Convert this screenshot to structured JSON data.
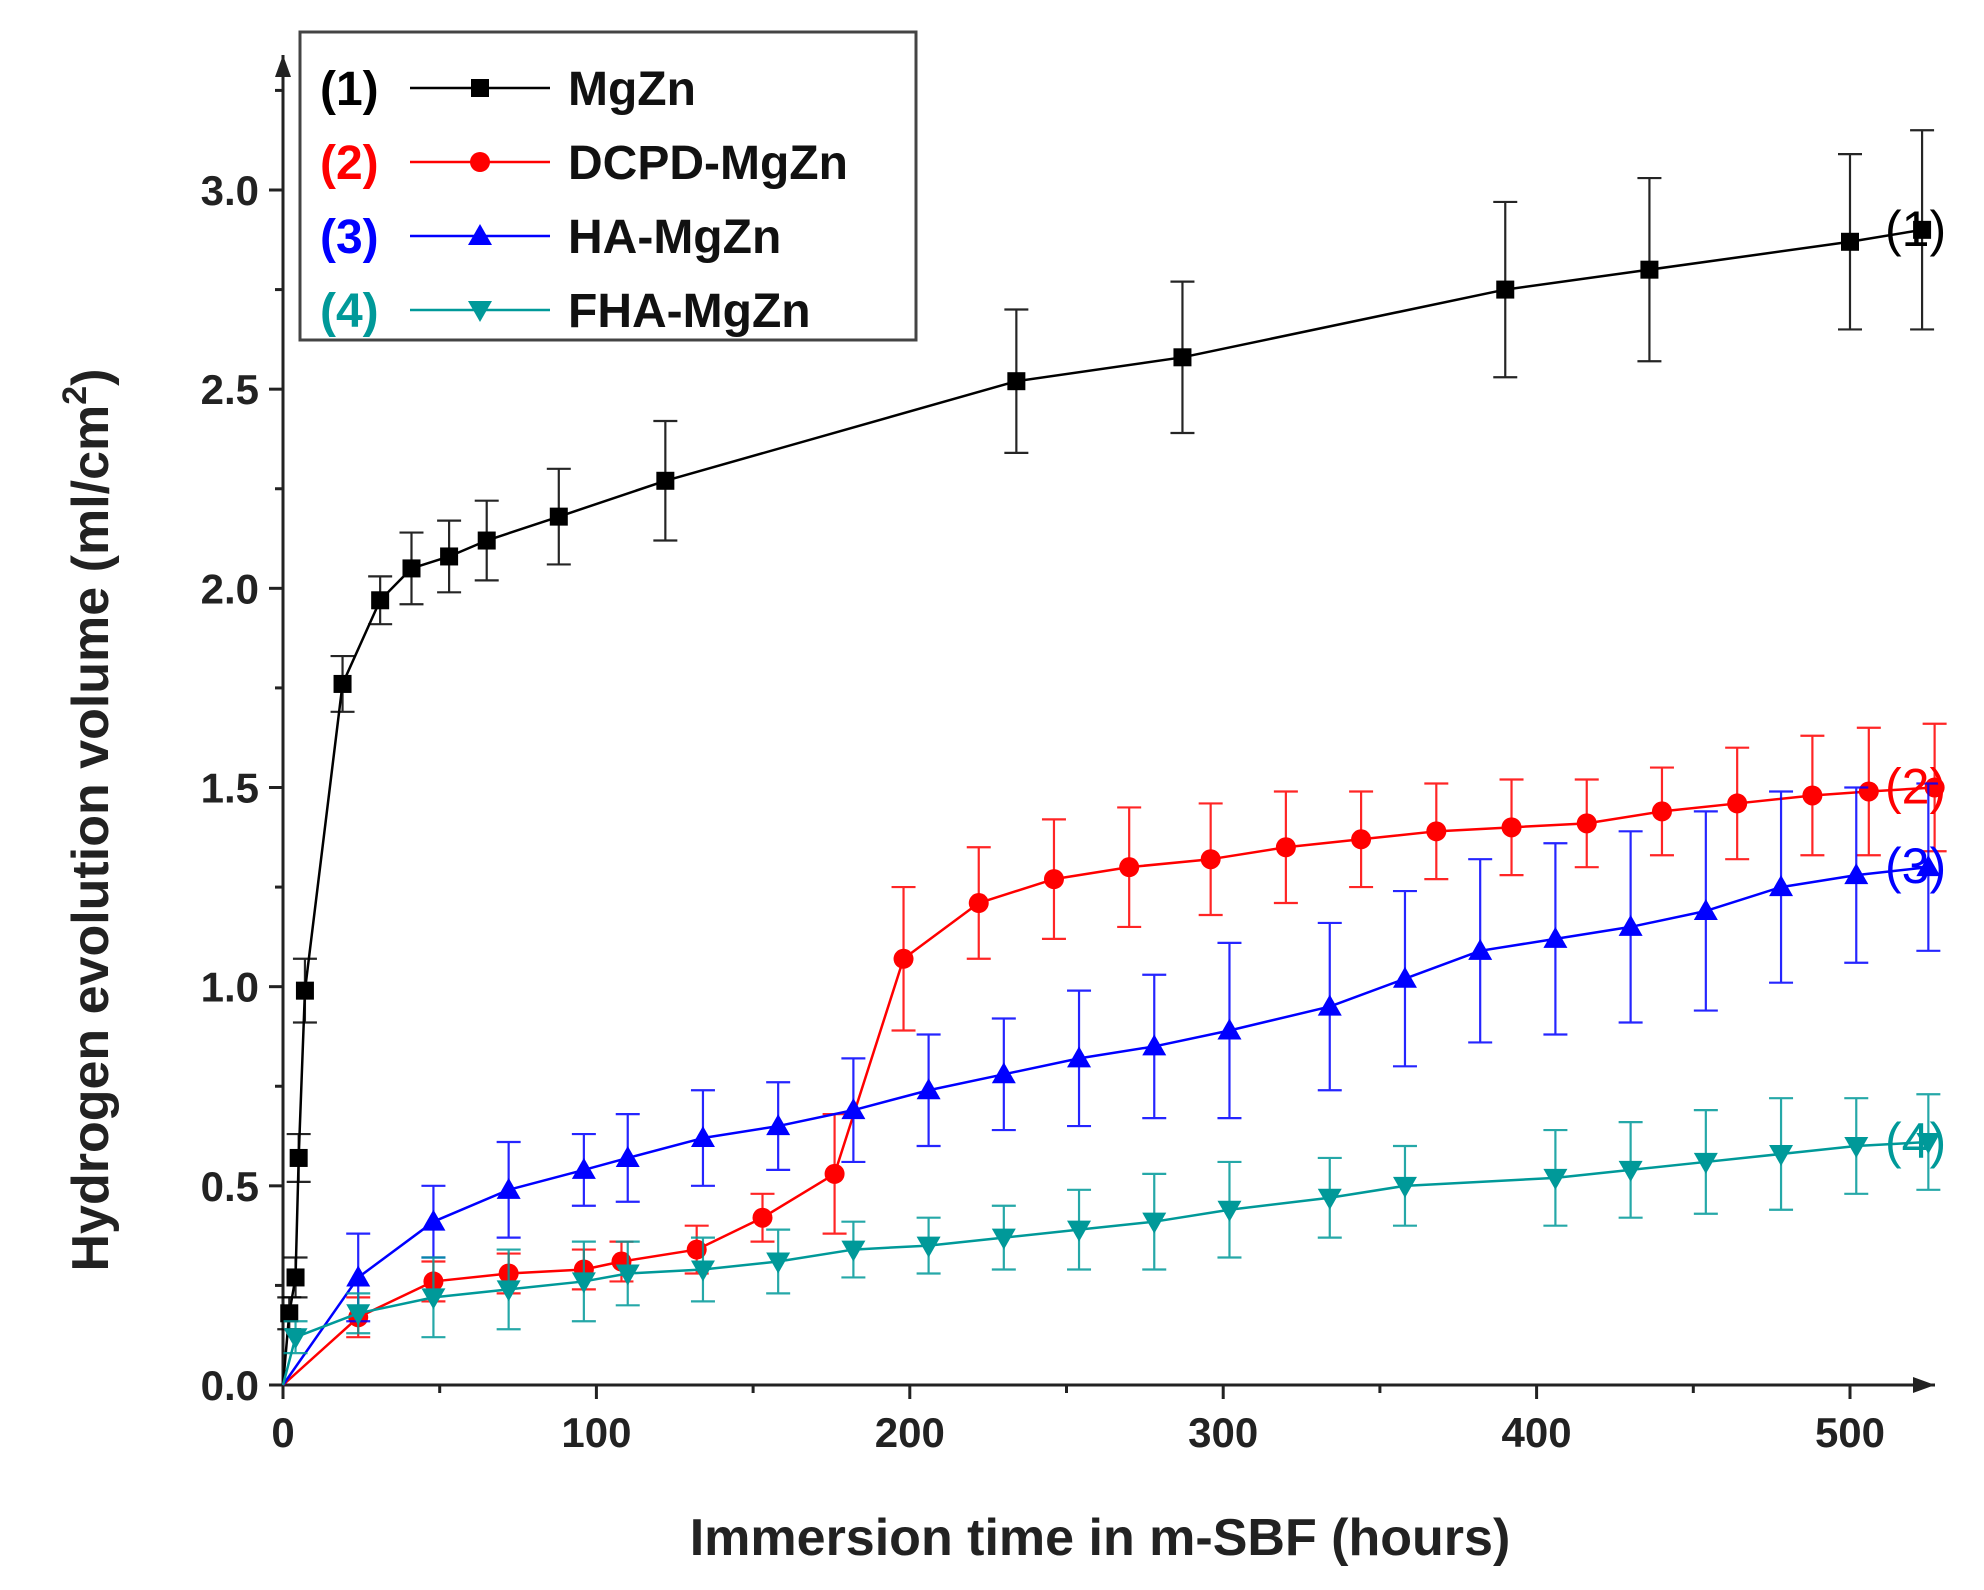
{
  "chart_data": {
    "type": "line",
    "title": "",
    "xlabel": "Immersion time in m-SBF (hours)",
    "ylabel": "Hydrogen evolution volume (ml/cm",
    "ylabel_sup": "2",
    "ylabel_close": ")",
    "xlim": [
      0,
      550
    ],
    "ylim": [
      0,
      3.2
    ],
    "x_ticks": [
      0,
      100,
      200,
      300,
      400,
      500
    ],
    "x_tick_labels": [
      "0",
      "100",
      "200",
      "300",
      "400",
      "500"
    ],
    "y_ticks": [
      0.0,
      0.5,
      1.0,
      1.5,
      2.0,
      2.5,
      3.0
    ],
    "y_tick_labels": [
      "0.0",
      "0.5",
      "1.0",
      "1.5",
      "2.0",
      "2.5",
      "3.0"
    ],
    "legend_position": "top-left",
    "series": [
      {
        "id": "1",
        "tag": "(1)",
        "name": "MgZn",
        "color": "#000000",
        "marker": "square",
        "end_label": "(1)",
        "points": [
          {
            "x": 0,
            "y": 0.0,
            "err": 0
          },
          {
            "x": 2,
            "y": 0.18,
            "err": 0.04
          },
          {
            "x": 4,
            "y": 0.27,
            "err": 0.05
          },
          {
            "x": 5,
            "y": 0.57,
            "err": 0.06
          },
          {
            "x": 7,
            "y": 0.99,
            "err": 0.08
          },
          {
            "x": 19,
            "y": 1.76,
            "err": 0.07
          },
          {
            "x": 31,
            "y": 1.97,
            "err": 0.06
          },
          {
            "x": 41,
            "y": 2.05,
            "err": 0.09
          },
          {
            "x": 53,
            "y": 2.08,
            "err": 0.09
          },
          {
            "x": 65,
            "y": 2.12,
            "err": 0.1
          },
          {
            "x": 88,
            "y": 2.18,
            "err": 0.12
          },
          {
            "x": 122,
            "y": 2.27,
            "err": 0.15
          },
          {
            "x": 234,
            "y": 2.52,
            "err": 0.18
          },
          {
            "x": 287,
            "y": 2.58,
            "err": 0.19
          },
          {
            "x": 390,
            "y": 2.75,
            "err": 0.22
          },
          {
            "x": 436,
            "y": 2.8,
            "err": 0.23
          },
          {
            "x": 500,
            "y": 2.87,
            "err": 0.22
          },
          {
            "x": 523,
            "y": 2.9,
            "err": 0.25
          }
        ]
      },
      {
        "id": "2",
        "tag": "(2)",
        "name": "DCPD-MgZn",
        "color": "#ff0000",
        "marker": "circle",
        "end_label": "(2)",
        "points": [
          {
            "x": 0,
            "y": 0.0,
            "err": 0
          },
          {
            "x": 24,
            "y": 0.17,
            "err": 0.05
          },
          {
            "x": 48,
            "y": 0.26,
            "err": 0.05
          },
          {
            "x": 72,
            "y": 0.28,
            "err": 0.05
          },
          {
            "x": 96,
            "y": 0.29,
            "err": 0.05
          },
          {
            "x": 108,
            "y": 0.31,
            "err": 0.05
          },
          {
            "x": 132,
            "y": 0.34,
            "err": 0.06
          },
          {
            "x": 153,
            "y": 0.42,
            "err": 0.06
          },
          {
            "x": 176,
            "y": 0.53,
            "err": 0.15
          },
          {
            "x": 198,
            "y": 1.07,
            "err": 0.18
          },
          {
            "x": 222,
            "y": 1.21,
            "err": 0.14
          },
          {
            "x": 246,
            "y": 1.27,
            "err": 0.15
          },
          {
            "x": 270,
            "y": 1.3,
            "err": 0.15
          },
          {
            "x": 296,
            "y": 1.32,
            "err": 0.14
          },
          {
            "x": 320,
            "y": 1.35,
            "err": 0.14
          },
          {
            "x": 344,
            "y": 1.37,
            "err": 0.12
          },
          {
            "x": 368,
            "y": 1.39,
            "err": 0.12
          },
          {
            "x": 392,
            "y": 1.4,
            "err": 0.12
          },
          {
            "x": 416,
            "y": 1.41,
            "err": 0.11
          },
          {
            "x": 440,
            "y": 1.44,
            "err": 0.11
          },
          {
            "x": 464,
            "y": 1.46,
            "err": 0.14
          },
          {
            "x": 488,
            "y": 1.48,
            "err": 0.15
          },
          {
            "x": 506,
            "y": 1.49,
            "err": 0.16
          },
          {
            "x": 527,
            "y": 1.5,
            "err": 0.16
          }
        ]
      },
      {
        "id": "3",
        "tag": "(3)",
        "name": "HA-MgZn",
        "color": "#0000ff",
        "marker": "triangle-up",
        "end_label": "(3)",
        "points": [
          {
            "x": 0,
            "y": 0.0,
            "err": 0
          },
          {
            "x": 24,
            "y": 0.27,
            "err": 0.11
          },
          {
            "x": 48,
            "y": 0.41,
            "err": 0.09
          },
          {
            "x": 72,
            "y": 0.49,
            "err": 0.12
          },
          {
            "x": 96,
            "y": 0.54,
            "err": 0.09
          },
          {
            "x": 110,
            "y": 0.57,
            "err": 0.11
          },
          {
            "x": 134,
            "y": 0.62,
            "err": 0.12
          },
          {
            "x": 158,
            "y": 0.65,
            "err": 0.11
          },
          {
            "x": 182,
            "y": 0.69,
            "err": 0.13
          },
          {
            "x": 206,
            "y": 0.74,
            "err": 0.14
          },
          {
            "x": 230,
            "y": 0.78,
            "err": 0.14
          },
          {
            "x": 254,
            "y": 0.82,
            "err": 0.17
          },
          {
            "x": 278,
            "y": 0.85,
            "err": 0.18
          },
          {
            "x": 302,
            "y": 0.89,
            "err": 0.22
          },
          {
            "x": 334,
            "y": 0.95,
            "err": 0.21
          },
          {
            "x": 358,
            "y": 1.02,
            "err": 0.22
          },
          {
            "x": 382,
            "y": 1.09,
            "err": 0.23
          },
          {
            "x": 406,
            "y": 1.12,
            "err": 0.24
          },
          {
            "x": 430,
            "y": 1.15,
            "err": 0.24
          },
          {
            "x": 454,
            "y": 1.19,
            "err": 0.25
          },
          {
            "x": 478,
            "y": 1.25,
            "err": 0.24
          },
          {
            "x": 502,
            "y": 1.28,
            "err": 0.22
          },
          {
            "x": 525,
            "y": 1.3,
            "err": 0.21
          }
        ]
      },
      {
        "id": "4",
        "tag": "(4)",
        "name": "FHA-MgZn",
        "color": "#009999",
        "marker": "triangle-down",
        "end_label": "(4)",
        "points": [
          {
            "x": 0,
            "y": 0.0,
            "err": 0
          },
          {
            "x": 4,
            "y": 0.12,
            "err": 0.04
          },
          {
            "x": 24,
            "y": 0.18,
            "err": 0.05
          },
          {
            "x": 48,
            "y": 0.22,
            "err": 0.1
          },
          {
            "x": 72,
            "y": 0.24,
            "err": 0.1
          },
          {
            "x": 96,
            "y": 0.26,
            "err": 0.1
          },
          {
            "x": 110,
            "y": 0.28,
            "err": 0.08
          },
          {
            "x": 134,
            "y": 0.29,
            "err": 0.08
          },
          {
            "x": 158,
            "y": 0.31,
            "err": 0.08
          },
          {
            "x": 182,
            "y": 0.34,
            "err": 0.07
          },
          {
            "x": 206,
            "y": 0.35,
            "err": 0.07
          },
          {
            "x": 230,
            "y": 0.37,
            "err": 0.08
          },
          {
            "x": 254,
            "y": 0.39,
            "err": 0.1
          },
          {
            "x": 278,
            "y": 0.41,
            "err": 0.12
          },
          {
            "x": 302,
            "y": 0.44,
            "err": 0.12
          },
          {
            "x": 334,
            "y": 0.47,
            "err": 0.1
          },
          {
            "x": 358,
            "y": 0.5,
            "err": 0.1
          },
          {
            "x": 406,
            "y": 0.52,
            "err": 0.12
          },
          {
            "x": 430,
            "y": 0.54,
            "err": 0.12
          },
          {
            "x": 454,
            "y": 0.56,
            "err": 0.13
          },
          {
            "x": 478,
            "y": 0.58,
            "err": 0.14
          },
          {
            "x": 502,
            "y": 0.6,
            "err": 0.12
          },
          {
            "x": 525,
            "y": 0.61,
            "err": 0.12
          }
        ]
      }
    ]
  }
}
